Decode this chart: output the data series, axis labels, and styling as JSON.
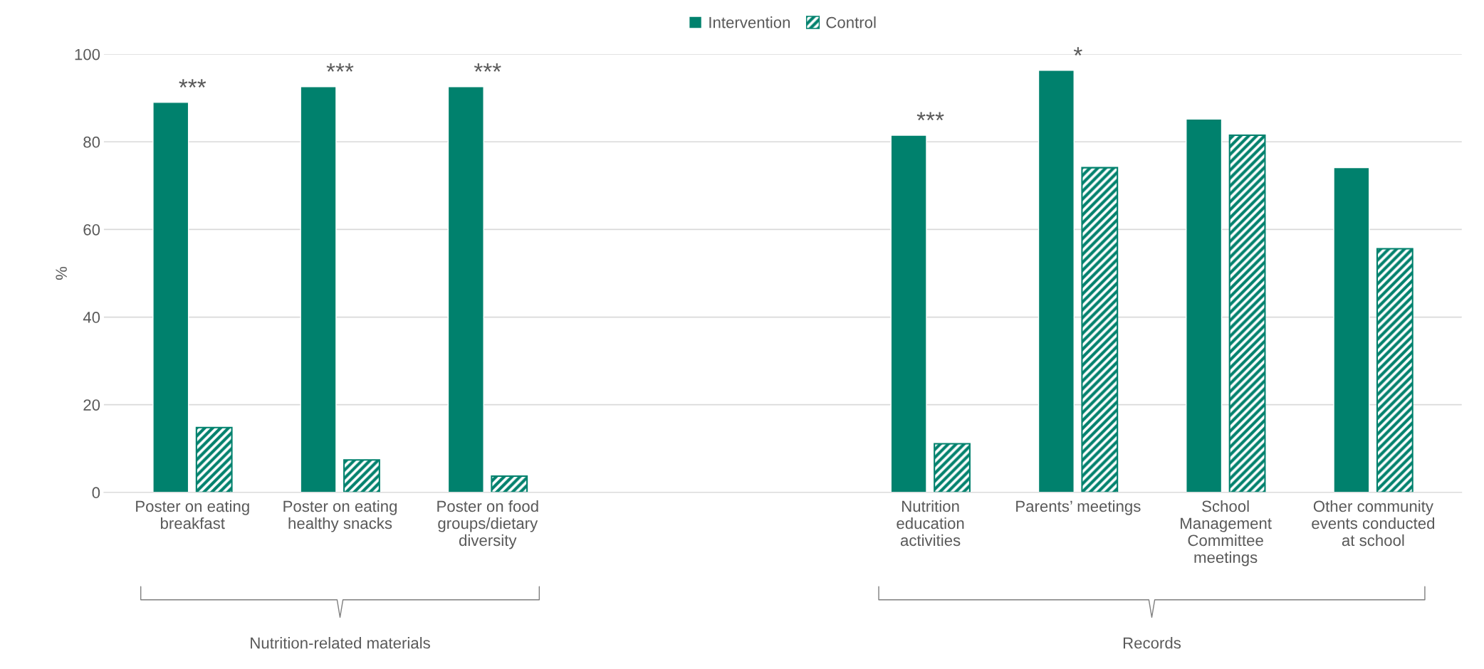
{
  "chart_data": {
    "type": "bar",
    "ylabel": "%",
    "categories": [
      "Poster on eating\nbreakfast",
      "Poster on eating\nhealthy snacks",
      "Poster on food\ngroups/dietary\ndiversity",
      null,
      null,
      "Nutrition\neducation\nactivities",
      "Parents’ meetings",
      "School\nManagement\nCommittee\nmeetings",
      "Other community\nevents conducted\nat school"
    ],
    "series": [
      {
        "name": "Intervention",
        "color": "#00816d",
        "values": [
          89,
          92.6,
          92.6,
          null,
          null,
          81.5,
          96.3,
          85.2,
          74.1
        ]
      },
      {
        "name": "Control",
        "color": "#00816d",
        "values": [
          14.8,
          7.4,
          3.7,
          null,
          null,
          11.1,
          74.1,
          81.5,
          55.6
        ]
      }
    ],
    "ylim": [
      0,
      100
    ],
    "yticks": [
      0,
      20,
      40,
      60,
      80,
      100
    ],
    "grid": "y",
    "legend": "top",
    "annotations": [
      "***",
      "***",
      "***",
      "***",
      "*",
      "Nutrition-related materials",
      "Records"
    ]
  }
}
